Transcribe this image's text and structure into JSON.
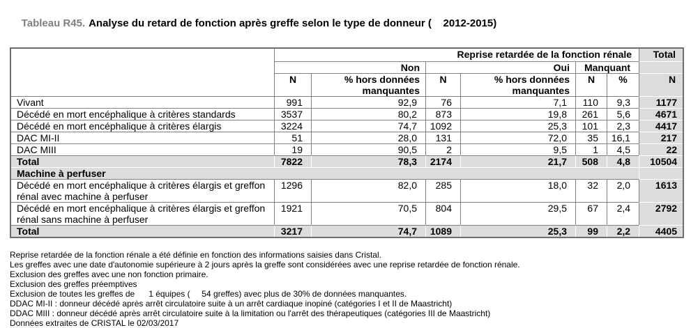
{
  "title": {
    "prefix": "Tableau R45.",
    "text": "Analyse du retard de fonction après greffe selon le type de donneur (    2012-2015)"
  },
  "colors": {
    "shaded_cell_fill": "#dcdcdc",
    "grid_line": "#808080",
    "title_prefix_gray": "#808080"
  },
  "table": {
    "header": {
      "group_label": "Reprise retardée de la fonction rénale",
      "total_label": "Total",
      "subgroups": [
        "Non",
        "Oui",
        "Manquant"
      ],
      "col_n": "N",
      "col_pct_long": "% hors données manquantes",
      "col_pct_short": "%"
    },
    "rows": [
      {
        "type": "data",
        "label": "Vivant",
        "non_n": "991",
        "non_pct": "92,9",
        "oui_n": "76",
        "oui_pct": "7,1",
        "manq_n": "110",
        "manq_pct": "9,3",
        "total": "1177"
      },
      {
        "type": "data",
        "label": "Décédé en mort encéphalique à critères standards",
        "non_n": "3537",
        "non_pct": "80,2",
        "oui_n": "873",
        "oui_pct": "19,8",
        "manq_n": "261",
        "manq_pct": "5,6",
        "total": "4671"
      },
      {
        "type": "data",
        "label": "Décédé en mort encéphalique à critères élargis",
        "non_n": "3224",
        "non_pct": "74,7",
        "oui_n": "1092",
        "oui_pct": "25,3",
        "manq_n": "101",
        "manq_pct": "2,3",
        "total": "4417"
      },
      {
        "type": "data",
        "label": "DAC MI-II",
        "non_n": "51",
        "non_pct": "28,0",
        "oui_n": "131",
        "oui_pct": "72,0",
        "manq_n": "35",
        "manq_pct": "16,1",
        "total": "217"
      },
      {
        "type": "data",
        "label": "DAC MIII",
        "non_n": "19",
        "non_pct": "90,5",
        "oui_n": "2",
        "oui_pct": "9,5",
        "manq_n": "1",
        "manq_pct": "4,5",
        "total": "22"
      },
      {
        "type": "total",
        "label": "Total",
        "non_n": "7822",
        "non_pct": "78,3",
        "oui_n": "2174",
        "oui_pct": "21,7",
        "manq_n": "508",
        "manq_pct": "4,8",
        "total": "10504"
      },
      {
        "type": "section",
        "label": "Machine à perfuser"
      },
      {
        "type": "data",
        "label": "Décédé en mort encéphalique à critères élargis et greffon rénal avec machine à perfuser",
        "non_n": "1296",
        "non_pct": "82,0",
        "oui_n": "285",
        "oui_pct": "18,0",
        "manq_n": "32",
        "manq_pct": "2,0",
        "total": "1613"
      },
      {
        "type": "data",
        "label": "Décédé en mort encéphalique à critères élargis et greffon rénal sans machine à perfuser",
        "non_n": "1921",
        "non_pct": "70,5",
        "oui_n": "804",
        "oui_pct": "29,5",
        "manq_n": "67",
        "manq_pct": "2,4",
        "total": "2792"
      },
      {
        "type": "total",
        "label": "Total",
        "non_n": "3217",
        "non_pct": "74,7",
        "oui_n": "1089",
        "oui_pct": "25,3",
        "manq_n": "99",
        "manq_pct": "2,2",
        "total": "4405"
      }
    ]
  },
  "footnotes": [
    "Reprise retardée de la fonction rénale a été définie en fonction des informations saisies dans Cristal.",
    "Les greffes avec une date d'autonomie supérieure à 2 jours après la greffe sont considérées avec une reprise retardée de fonction rénale.",
    "Exclusion des greffes avec une non fonction primaire.",
    "Exclusion des greffes préemptives",
    "Exclusion de toutes les greffes de      1 équipes (     54 greffes) avec plus de 30% de données manquantes.",
    "DDAC MI-II : donneur décédé après arrêt circulatoire suite à un arrêt cardiaque inopiné (catégories I et II de Maastricht)",
    "DDAC MIII : donneur décédé après arrêt circulatoire suite à la limitation ou l'arrêt des thérapeutiques (catégories III de Maastricht)",
    "Données extraites de CRISTAL le 02/03/2017"
  ]
}
